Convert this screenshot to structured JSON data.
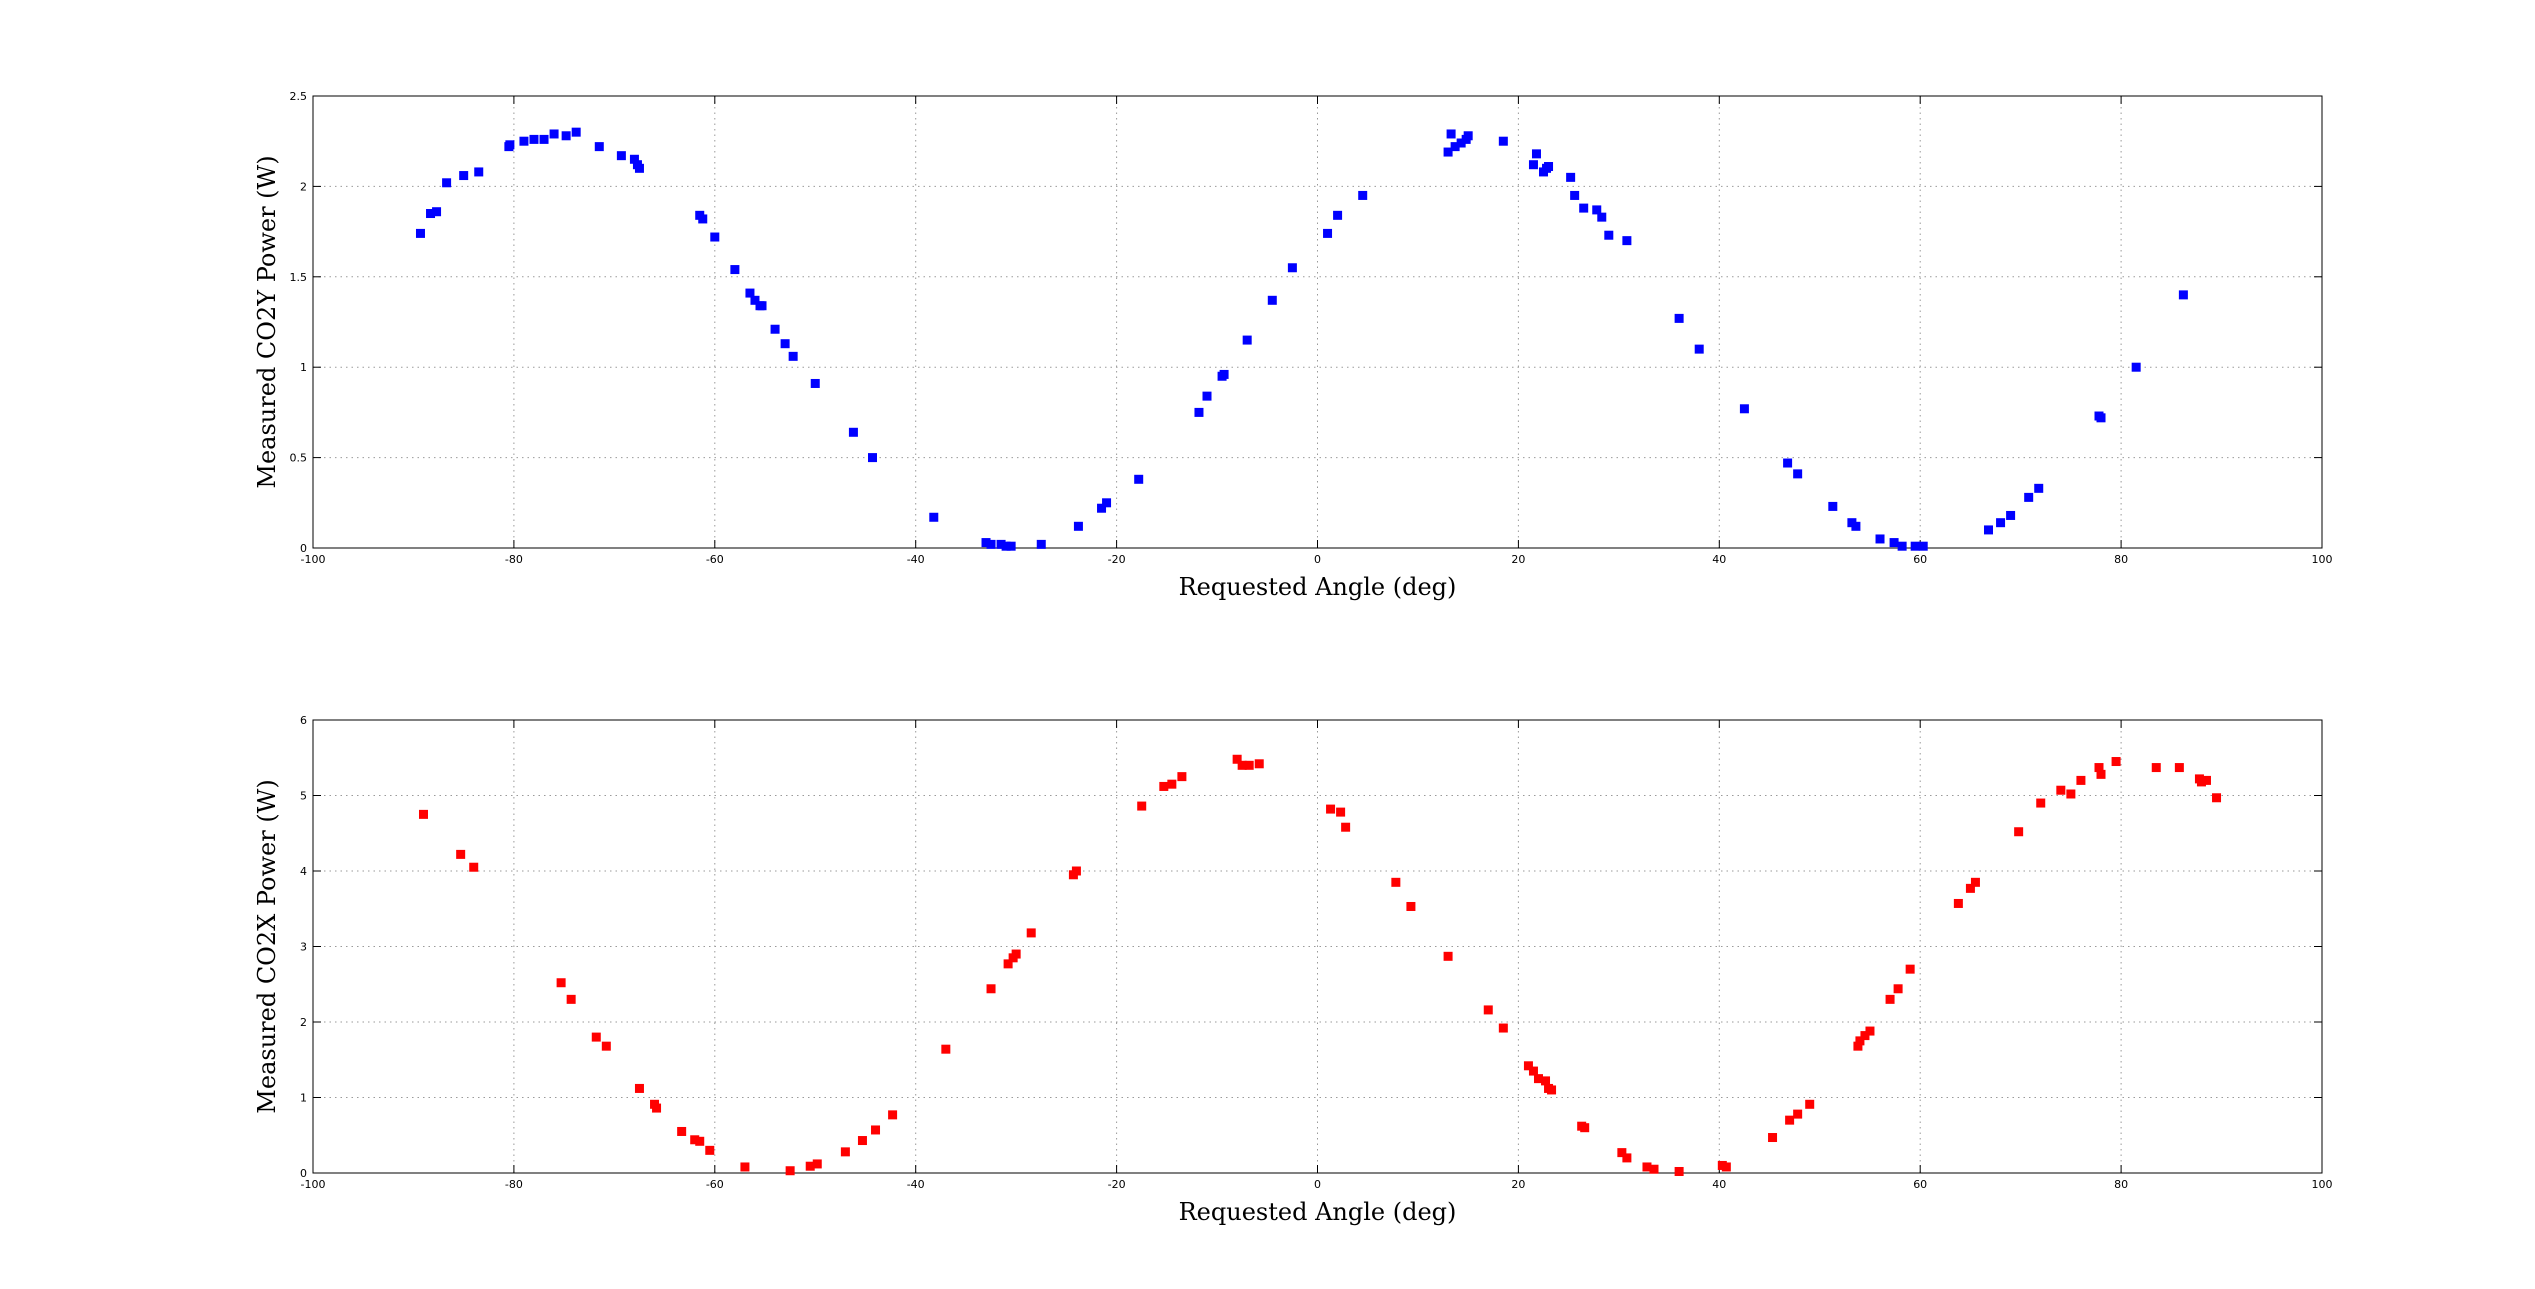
{
  "chart_data": [
    {
      "type": "scatter",
      "title": "",
      "xlabel": "Requested Angle (deg)",
      "ylabel": "Measured CO2Y Power (W)",
      "xlim": [
        -100,
        100
      ],
      "ylim": [
        0,
        2.5
      ],
      "xticks": [
        -100,
        -80,
        -60,
        -40,
        -20,
        0,
        20,
        40,
        60,
        80,
        100
      ],
      "yticks": [
        0,
        0.5,
        1,
        1.5,
        2,
        2.5
      ],
      "grid": true,
      "legend": "none",
      "color": "#0000ff",
      "marker": "square",
      "series": [
        {
          "x": [
            -89.3,
            -88.3,
            -87.7,
            -86.7,
            -85.0,
            -83.5,
            -80.5,
            -80.4,
            -79.0,
            -78.0,
            -77.0,
            -76.0,
            -74.8,
            -73.8,
            -71.5,
            -69.3,
            -68.0,
            -67.7,
            -67.5,
            -61.5,
            -61.2,
            -60.0,
            -58.0,
            -56.5,
            -56.0,
            -55.5,
            -55.3,
            -54.0,
            -53.0,
            -52.2,
            -50.0,
            -46.2,
            -44.3,
            -38.2,
            -33.0,
            -32.5,
            -31.5,
            -31.0,
            -30.5,
            -27.5,
            -23.8,
            -21.5,
            -21.0,
            -17.8,
            -11.8,
            -11.0,
            -9.5,
            -9.3,
            -7.0,
            -4.5,
            -2.5,
            1.0,
            2.0,
            4.5,
            13.0,
            13.3,
            13.7,
            14.3,
            14.8,
            15.0,
            18.5,
            21.5,
            21.8,
            22.5,
            22.8,
            23.0,
            25.2,
            25.6,
            26.5,
            27.8,
            28.3,
            29.0,
            30.8,
            36.0,
            38.0,
            42.5,
            46.8,
            47.8,
            51.3,
            53.2,
            53.6,
            56.0,
            57.4,
            58.2,
            59.5,
            60.3,
            66.8,
            68.0,
            69.0,
            70.8,
            71.8,
            77.8,
            78.0,
            81.5,
            86.2
          ],
          "y": [
            1.74,
            1.85,
            1.86,
            2.02,
            2.06,
            2.08,
            2.22,
            2.23,
            2.25,
            2.26,
            2.26,
            2.29,
            2.28,
            2.3,
            2.22,
            2.17,
            2.15,
            2.12,
            2.1,
            1.84,
            1.82,
            1.72,
            1.54,
            1.41,
            1.37,
            1.34,
            1.34,
            1.21,
            1.13,
            1.06,
            0.91,
            0.64,
            0.5,
            0.17,
            0.03,
            0.02,
            0.02,
            0.01,
            0.01,
            0.02,
            0.12,
            0.22,
            0.25,
            0.38,
            0.75,
            0.84,
            0.95,
            0.96,
            1.15,
            1.37,
            1.55,
            1.74,
            1.84,
            1.95,
            2.19,
            2.29,
            2.22,
            2.24,
            2.26,
            2.28,
            2.25,
            2.12,
            2.18,
            2.08,
            2.1,
            2.11,
            2.05,
            1.95,
            1.88,
            1.87,
            1.83,
            1.73,
            1.7,
            1.27,
            1.1,
            0.77,
            0.47,
            0.41,
            0.23,
            0.14,
            0.12,
            0.05,
            0.03,
            0.01,
            0.01,
            0.01,
            0.1,
            0.14,
            0.18,
            0.28,
            0.33,
            0.73,
            0.72,
            1.0,
            1.4
          ]
        }
      ]
    },
    {
      "type": "scatter",
      "title": "",
      "xlabel": "Requested Angle (deg)",
      "ylabel": "Measured CO2X Power (W)",
      "xlim": [
        -100,
        100
      ],
      "ylim": [
        0,
        6
      ],
      "xticks": [
        -100,
        -80,
        -60,
        -40,
        -20,
        0,
        20,
        40,
        60,
        80,
        100
      ],
      "yticks": [
        0,
        1,
        2,
        3,
        4,
        5,
        6
      ],
      "grid": true,
      "legend": "none",
      "color": "#ff0000",
      "marker": "square",
      "series": [
        {
          "x": [
            -89.0,
            -85.3,
            -84.0,
            -75.3,
            -74.3,
            -71.8,
            -70.8,
            -67.5,
            -66.0,
            -65.8,
            -63.3,
            -62.0,
            -61.5,
            -60.5,
            -57.0,
            -52.5,
            -50.5,
            -49.8,
            -47.0,
            -45.3,
            -44.0,
            -42.3,
            -37.0,
            -32.5,
            -30.8,
            -30.3,
            -30.0,
            -28.5,
            -24.3,
            -24.0,
            -17.5,
            -15.3,
            -14.5,
            -13.5,
            -8.0,
            -7.5,
            -6.8,
            -5.8,
            1.3,
            2.3,
            2.8,
            7.8,
            9.3,
            13.0,
            17.0,
            18.5,
            21.0,
            21.5,
            22.0,
            22.7,
            23.0,
            23.3,
            26.3,
            26.6,
            30.3,
            30.8,
            32.8,
            33.5,
            36.0,
            40.3,
            40.7,
            45.3,
            47.0,
            47.8,
            49.0,
            53.8,
            54.0,
            54.5,
            55.0,
            57.0,
            57.8,
            59.0,
            63.8,
            65.0,
            65.5,
            69.8,
            72.0,
            74.0,
            75.0,
            76.0,
            77.8,
            78.0,
            79.5,
            83.5,
            85.8,
            87.8,
            88.0,
            88.5,
            89.5
          ],
          "y": [
            4.75,
            4.22,
            4.05,
            2.52,
            2.3,
            1.8,
            1.68,
            1.12,
            0.91,
            0.86,
            0.55,
            0.44,
            0.42,
            0.3,
            0.08,
            0.03,
            0.09,
            0.12,
            0.28,
            0.43,
            0.57,
            0.77,
            1.64,
            2.44,
            2.77,
            2.85,
            2.9,
            3.18,
            3.95,
            4.0,
            4.86,
            5.12,
            5.15,
            5.25,
            5.48,
            5.4,
            5.4,
            5.42,
            4.82,
            4.78,
            4.58,
            3.85,
            3.53,
            2.87,
            2.16,
            1.92,
            1.42,
            1.35,
            1.25,
            1.22,
            1.12,
            1.1,
            0.62,
            0.6,
            0.27,
            0.2,
            0.08,
            0.05,
            0.02,
            0.1,
            0.08,
            0.47,
            0.7,
            0.78,
            0.91,
            1.68,
            1.75,
            1.82,
            1.88,
            2.3,
            2.44,
            2.7,
            3.57,
            3.77,
            3.85,
            4.52,
            4.9,
            5.07,
            5.02,
            5.2,
            5.37,
            5.28,
            5.45,
            5.37,
            5.37,
            5.22,
            5.18,
            5.2,
            4.97
          ]
        }
      ]
    }
  ]
}
